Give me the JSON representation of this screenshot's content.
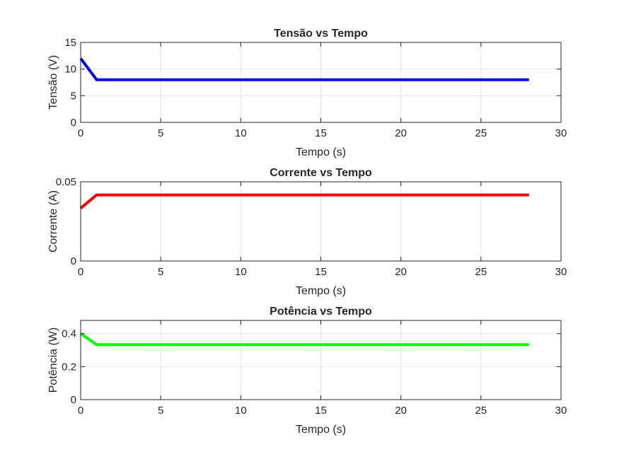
{
  "chart_data": [
    {
      "type": "line",
      "title": "Tensão vs Tempo",
      "xlabel": "Tempo (s)",
      "ylabel": "Tensão (V)",
      "xlim": [
        0,
        30
      ],
      "ylim": [
        0,
        15
      ],
      "xticks": [
        0,
        5,
        10,
        15,
        20,
        25,
        30
      ],
      "yticks": [
        0,
        5,
        10,
        15
      ],
      "grid": true,
      "series": [
        {
          "x": [
            0,
            1,
            28
          ],
          "y": [
            12,
            8,
            8
          ],
          "color": "#0000ff"
        }
      ]
    },
    {
      "type": "line",
      "title": "Corrente vs Tempo",
      "xlabel": "Tempo (s)",
      "ylabel": "Corrente (A)",
      "xlim": [
        0,
        30
      ],
      "ylim": [
        0,
        0.05
      ],
      "xticks": [
        0,
        5,
        10,
        15,
        20,
        25,
        30
      ],
      "yticks": [
        0,
        0.05
      ],
      "grid": true,
      "series": [
        {
          "x": [
            0,
            1,
            28
          ],
          "y": [
            0.0333,
            0.0417,
            0.0417
          ],
          "color": "#ff0000"
        }
      ]
    },
    {
      "type": "line",
      "title": "Potência vs Tempo",
      "xlabel": "Tempo (s)",
      "ylabel": "Potência (W)",
      "xlim": [
        0,
        30
      ],
      "ylim": [
        0,
        0.48
      ],
      "xticks": [
        0,
        5,
        10,
        15,
        20,
        25,
        30
      ],
      "yticks": [
        0,
        0.2,
        0.4
      ],
      "grid": true,
      "series": [
        {
          "x": [
            0,
            1,
            28
          ],
          "y": [
            0.4,
            0.333,
            0.333
          ],
          "color": "#00ff00"
        }
      ]
    }
  ]
}
